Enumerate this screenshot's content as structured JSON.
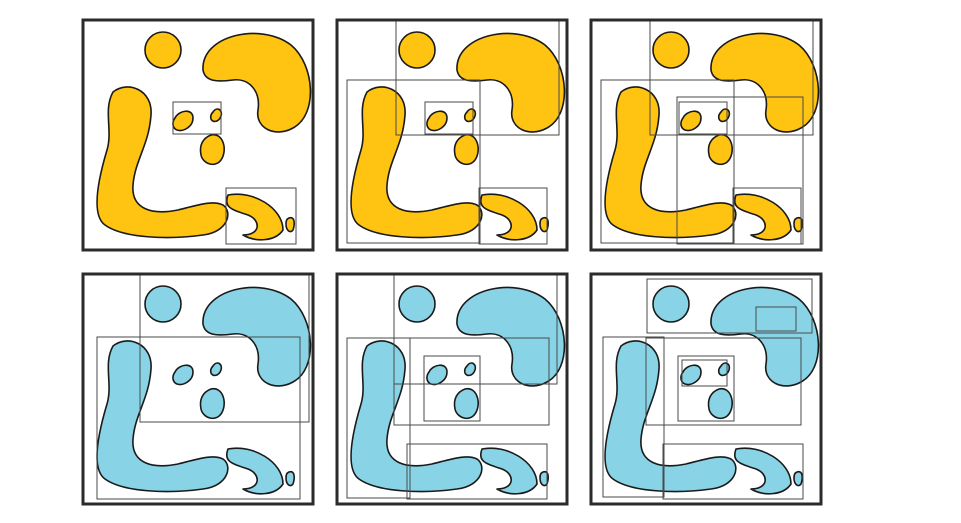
{
  "colors": {
    "row1_fill": "#FFC312",
    "row2_fill": "#88D4E6",
    "outline": "#1a1a1a",
    "frame": "#2b2b2b",
    "box_stroke": "#4a4a4a",
    "background": "#ffffff"
  },
  "rows": [
    {
      "name": "row-orange",
      "fill_key": "row1_fill"
    },
    {
      "name": "row-blue",
      "fill_key": "row2_fill"
    }
  ],
  "panels_per_row": 3
}
